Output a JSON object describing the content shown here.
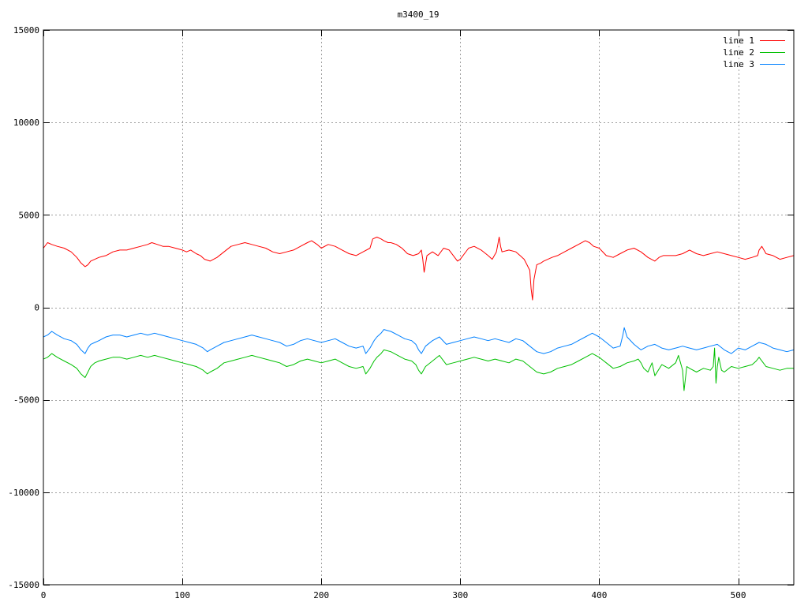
{
  "chart_data": {
    "type": "line",
    "title": "m3400_19",
    "xlabel": "",
    "ylabel": "",
    "xlim": [
      0,
      540
    ],
    "ylim": [
      -15000,
      15000
    ],
    "xticks": [
      0,
      100,
      200,
      300,
      400,
      500
    ],
    "yticks": [
      -15000,
      -10000,
      -5000,
      0,
      5000,
      10000,
      15000
    ],
    "grid": true,
    "legend_position": "top-right",
    "series": [
      {
        "name": "line 1",
        "color": "#ff0000",
        "x": [
          0,
          3,
          6,
          10,
          15,
          20,
          24,
          27,
          30,
          32,
          34,
          37,
          40,
          45,
          50,
          55,
          60,
          65,
          70,
          75,
          78,
          82,
          86,
          90,
          95,
          100,
          103,
          106,
          110,
          113,
          116,
          120,
          125,
          130,
          135,
          140,
          145,
          150,
          155,
          160,
          165,
          170,
          175,
          180,
          185,
          190,
          193,
          197,
          200,
          205,
          210,
          215,
          220,
          225,
          230,
          235,
          237,
          240,
          243,
          245,
          248,
          250,
          254,
          258,
          262,
          266,
          270,
          272,
          273,
          274,
          276,
          280,
          284,
          288,
          292,
          295,
          298,
          300,
          303,
          306,
          310,
          315,
          320,
          323,
          326,
          327,
          328,
          329,
          330,
          335,
          340,
          343,
          346,
          348,
          350,
          351,
          352,
          353,
          355,
          358,
          360,
          363,
          366,
          370,
          375,
          380,
          385,
          390,
          393,
          396,
          400,
          405,
          410,
          415,
          420,
          425,
          430,
          435,
          440,
          443,
          446,
          450,
          455,
          460,
          465,
          470,
          475,
          480,
          485,
          490,
          495,
          500,
          505,
          510,
          514,
          515,
          517,
          520,
          525,
          530,
          535,
          540
        ],
        "y": [
          3200,
          3500,
          3400,
          3300,
          3200,
          3000,
          2700,
          2400,
          2200,
          2300,
          2500,
          2600,
          2700,
          2800,
          3000,
          3100,
          3100,
          3200,
          3300,
          3400,
          3500,
          3400,
          3300,
          3300,
          3200,
          3100,
          3000,
          3100,
          2900,
          2800,
          2600,
          2500,
          2700,
          3000,
          3300,
          3400,
          3500,
          3400,
          3300,
          3200,
          3000,
          2900,
          3000,
          3100,
          3300,
          3500,
          3600,
          3400,
          3200,
          3400,
          3300,
          3100,
          2900,
          2800,
          3000,
          3200,
          3700,
          3800,
          3700,
          3600,
          3500,
          3500,
          3400,
          3200,
          2900,
          2800,
          2900,
          3100,
          2600,
          1900,
          2800,
          3000,
          2800,
          3200,
          3100,
          2800,
          2500,
          2600,
          2900,
          3200,
          3300,
          3100,
          2800,
          2600,
          3000,
          3400,
          3800,
          3300,
          3000,
          3100,
          3000,
          2800,
          2600,
          2300,
          2000,
          1000,
          400,
          1500,
          2300,
          2400,
          2500,
          2600,
          2700,
          2800,
          3000,
          3200,
          3400,
          3600,
          3500,
          3300,
          3200,
          2800,
          2700,
          2900,
          3100,
          3200,
          3000,
          2700,
          2500,
          2700,
          2800,
          2800,
          2800,
          2900,
          3100,
          2900,
          2800,
          2900,
          3000,
          2900,
          2800,
          2700,
          2600,
          2700,
          2800,
          3100,
          3300,
          2900,
          2800,
          2600,
          2700,
          2800
        ]
      },
      {
        "name": "line 2",
        "color": "#00c000",
        "x": [
          0,
          3,
          6,
          10,
          15,
          20,
          24,
          27,
          30,
          32,
          34,
          37,
          40,
          45,
          50,
          55,
          60,
          65,
          70,
          75,
          80,
          85,
          90,
          95,
          100,
          105,
          110,
          115,
          118,
          120,
          125,
          130,
          135,
          140,
          145,
          150,
          155,
          160,
          165,
          170,
          175,
          180,
          185,
          190,
          195,
          200,
          205,
          210,
          215,
          220,
          225,
          230,
          232,
          235,
          238,
          240,
          243,
          245,
          250,
          255,
          260,
          265,
          268,
          270,
          272,
          275,
          280,
          285,
          290,
          295,
          300,
          305,
          310,
          315,
          320,
          325,
          330,
          335,
          340,
          345,
          350,
          355,
          360,
          365,
          370,
          375,
          380,
          385,
          390,
          395,
          400,
          405,
          410,
          415,
          420,
          425,
          428,
          430,
          432,
          435,
          438,
          440,
          445,
          450,
          455,
          457,
          460,
          461,
          463,
          465,
          470,
          475,
          480,
          482,
          483,
          484,
          485,
          486,
          488,
          490,
          495,
          500,
          505,
          510,
          513,
          515,
          518,
          520,
          525,
          530,
          535,
          540
        ],
        "y": [
          -2800,
          -2700,
          -2500,
          -2700,
          -2900,
          -3100,
          -3300,
          -3600,
          -3800,
          -3500,
          -3200,
          -3000,
          -2900,
          -2800,
          -2700,
          -2700,
          -2800,
          -2700,
          -2600,
          -2700,
          -2600,
          -2700,
          -2800,
          -2900,
          -3000,
          -3100,
          -3200,
          -3400,
          -3600,
          -3500,
          -3300,
          -3000,
          -2900,
          -2800,
          -2700,
          -2600,
          -2700,
          -2800,
          -2900,
          -3000,
          -3200,
          -3100,
          -2900,
          -2800,
          -2900,
          -3000,
          -2900,
          -2800,
          -3000,
          -3200,
          -3300,
          -3200,
          -3600,
          -3300,
          -2900,
          -2700,
          -2500,
          -2300,
          -2400,
          -2600,
          -2800,
          -2900,
          -3100,
          -3400,
          -3600,
          -3200,
          -2900,
          -2600,
          -3100,
          -3000,
          -2900,
          -2800,
          -2700,
          -2800,
          -2900,
          -2800,
          -2900,
          -3000,
          -2800,
          -2900,
          -3200,
          -3500,
          -3600,
          -3500,
          -3300,
          -3200,
          -3100,
          -2900,
          -2700,
          -2500,
          -2700,
          -3000,
          -3300,
          -3200,
          -3000,
          -2900,
          -2800,
          -3000,
          -3300,
          -3500,
          -3000,
          -3700,
          -3100,
          -3300,
          -3000,
          -2600,
          -3400,
          -4500,
          -3200,
          -3300,
          -3500,
          -3300,
          -3400,
          -3200,
          -2200,
          -4100,
          -3200,
          -2700,
          -3400,
          -3500,
          -3200,
          -3300,
          -3200,
          -3100,
          -2900,
          -2700,
          -3000,
          -3200,
          -3300,
          -3400,
          -3300,
          -3300
        ]
      },
      {
        "name": "line 3",
        "color": "#0080ff",
        "x": [
          0,
          3,
          6,
          10,
          15,
          20,
          24,
          27,
          30,
          32,
          34,
          37,
          40,
          45,
          50,
          55,
          60,
          65,
          70,
          75,
          80,
          85,
          90,
          95,
          100,
          105,
          110,
          115,
          118,
          120,
          125,
          130,
          135,
          140,
          145,
          150,
          155,
          160,
          165,
          170,
          175,
          180,
          185,
          190,
          195,
          200,
          205,
          210,
          215,
          220,
          225,
          230,
          232,
          235,
          238,
          240,
          243,
          245,
          250,
          255,
          260,
          265,
          268,
          270,
          272,
          275,
          280,
          285,
          290,
          295,
          300,
          305,
          310,
          315,
          320,
          325,
          330,
          335,
          340,
          345,
          350,
          355,
          360,
          365,
          370,
          375,
          380,
          385,
          390,
          395,
          400,
          405,
          410,
          415,
          417,
          418,
          420,
          425,
          430,
          435,
          440,
          445,
          450,
          455,
          460,
          465,
          470,
          475,
          480,
          485,
          490,
          495,
          500,
          505,
          510,
          515,
          520,
          525,
          530,
          535,
          540
        ],
        "y": [
          -1600,
          -1500,
          -1300,
          -1500,
          -1700,
          -1800,
          -2000,
          -2300,
          -2500,
          -2200,
          -2000,
          -1900,
          -1800,
          -1600,
          -1500,
          -1500,
          -1600,
          -1500,
          -1400,
          -1500,
          -1400,
          -1500,
          -1600,
          -1700,
          -1800,
          -1900,
          -2000,
          -2200,
          -2400,
          -2300,
          -2100,
          -1900,
          -1800,
          -1700,
          -1600,
          -1500,
          -1600,
          -1700,
          -1800,
          -1900,
          -2100,
          -2000,
          -1800,
          -1700,
          -1800,
          -1900,
          -1800,
          -1700,
          -1900,
          -2100,
          -2200,
          -2100,
          -2500,
          -2200,
          -1800,
          -1600,
          -1400,
          -1200,
          -1300,
          -1500,
          -1700,
          -1800,
          -2000,
          -2300,
          -2500,
          -2100,
          -1800,
          -1600,
          -2000,
          -1900,
          -1800,
          -1700,
          -1600,
          -1700,
          -1800,
          -1700,
          -1800,
          -1900,
          -1700,
          -1800,
          -2100,
          -2400,
          -2500,
          -2400,
          -2200,
          -2100,
          -2000,
          -1800,
          -1600,
          -1400,
          -1600,
          -1900,
          -2200,
          -2100,
          -1500,
          -1100,
          -1600,
          -2000,
          -2300,
          -2100,
          -2000,
          -2200,
          -2300,
          -2200,
          -2100,
          -2200,
          -2300,
          -2200,
          -2100,
          -2000,
          -2300,
          -2500,
          -2200,
          -2300,
          -2100,
          -1900,
          -2000,
          -2200,
          -2300,
          -2400,
          -2300
        ]
      }
    ]
  }
}
